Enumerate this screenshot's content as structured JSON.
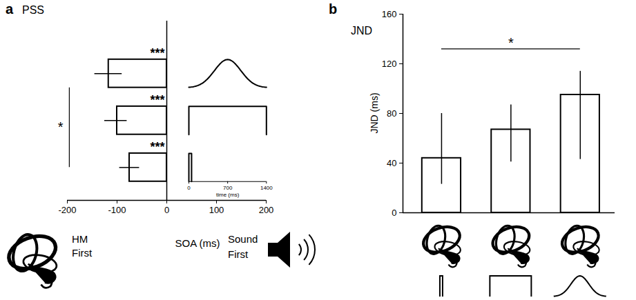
{
  "chart_data": [
    {
      "type": "bar",
      "panel": "a",
      "title": "PSS",
      "orientation": "horizontal",
      "color": "#ffffff",
      "categories": [
        null,
        null,
        null
      ],
      "values": [
        -117,
        -100,
        -75
      ],
      "error_low": [
        -145,
        -125,
        -95
      ],
      "error_high": [
        -90,
        -80,
        -55
      ],
      "significance": [
        "***",
        "***",
        "***"
      ],
      "comparison": {
        "from": 0,
        "to": 2,
        "label": "*"
      },
      "xlabel": "SOA (ms)",
      "xlim": [
        -200,
        200
      ],
      "xticks": [
        -200,
        -100,
        0,
        100,
        200
      ],
      "annotations": [
        "HM First",
        "Sound First"
      ],
      "inset": {
        "xlim": [
          0,
          1400
        ],
        "xticks": [
          0,
          700,
          1400
        ],
        "xlabel": "time (ms)"
      }
    },
    {
      "type": "bar",
      "panel": "b",
      "title": "JND",
      "color": "#ffffff",
      "categories": [
        null,
        null,
        null
      ],
      "values": [
        44,
        67,
        95
      ],
      "error_low": [
        23,
        41,
        43
      ],
      "error_high": [
        80,
        87,
        114
      ],
      "comparison": {
        "from": 0,
        "to": 2,
        "label": "*"
      },
      "ylabel": "JND (ms)",
      "ylim": [
        0,
        160
      ],
      "yticks": [
        0,
        40,
        80,
        120,
        160
      ]
    }
  ]
}
